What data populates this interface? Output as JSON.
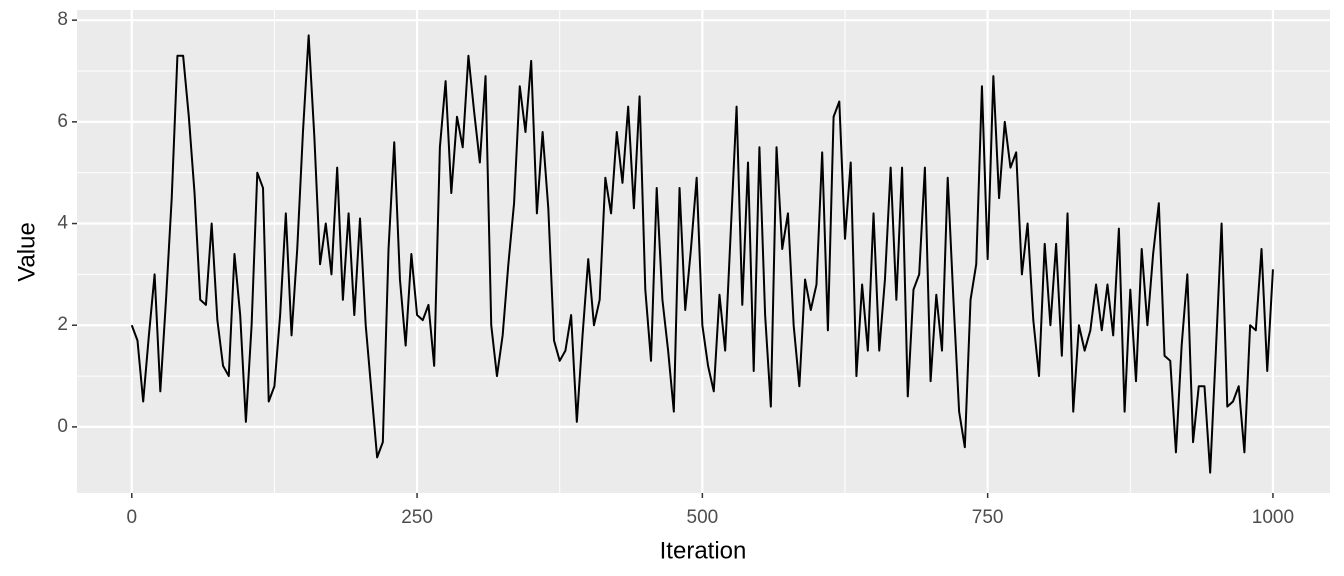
{
  "chart_data": {
    "type": "line",
    "x_label": "Iteration",
    "y_label": "Value",
    "xlim": [
      -48,
      1050
    ],
    "ylim": [
      -1.3,
      8.2
    ],
    "xticks": [
      0,
      250,
      500,
      750,
      1000
    ],
    "yticks": [
      0,
      2,
      4,
      6,
      8
    ],
    "grid": true,
    "series": [
      {
        "color": "#000000",
        "x": [
          0,
          5,
          10,
          15,
          20,
          25,
          30,
          35,
          40,
          45,
          50,
          55,
          60,
          65,
          70,
          75,
          80,
          85,
          90,
          95,
          100,
          105,
          110,
          115,
          120,
          125,
          130,
          135,
          140,
          145,
          150,
          155,
          160,
          165,
          170,
          175,
          180,
          185,
          190,
          195,
          200,
          205,
          210,
          215,
          220,
          225,
          230,
          235,
          240,
          245,
          250,
          255,
          260,
          265,
          270,
          275,
          280,
          285,
          290,
          295,
          300,
          305,
          310,
          315,
          320,
          325,
          330,
          335,
          340,
          345,
          350,
          355,
          360,
          365,
          370,
          375,
          380,
          385,
          390,
          395,
          400,
          405,
          410,
          415,
          420,
          425,
          430,
          435,
          440,
          445,
          450,
          455,
          460,
          465,
          470,
          475,
          480,
          485,
          490,
          495,
          500,
          505,
          510,
          515,
          520,
          525,
          530,
          535,
          540,
          545,
          550,
          555,
          560,
          565,
          570,
          575,
          580,
          585,
          590,
          595,
          600,
          605,
          610,
          615,
          620,
          625,
          630,
          635,
          640,
          645,
          650,
          655,
          660,
          665,
          670,
          675,
          680,
          685,
          690,
          695,
          700,
          705,
          710,
          715,
          720,
          725,
          730,
          735,
          740,
          745,
          750,
          755,
          760,
          765,
          770,
          775,
          780,
          785,
          790,
          795,
          800,
          805,
          810,
          815,
          820,
          825,
          830,
          835,
          840,
          845,
          850,
          855,
          860,
          865,
          870,
          875,
          880,
          885,
          890,
          895,
          900,
          905,
          910,
          915,
          920,
          925,
          930,
          935,
          940,
          945,
          950,
          955,
          960,
          965,
          970,
          975,
          980,
          985,
          990,
          995,
          1000
        ],
        "values": [
          2.0,
          1.7,
          0.5,
          1.8,
          3.0,
          0.7,
          2.5,
          4.5,
          7.3,
          7.3,
          6.1,
          4.6,
          2.5,
          2.4,
          4.0,
          2.1,
          1.2,
          1.0,
          3.4,
          2.2,
          0.1,
          2.0,
          5.0,
          4.7,
          0.5,
          0.8,
          2.2,
          4.2,
          1.8,
          3.5,
          5.8,
          7.7,
          5.7,
          3.2,
          4.0,
          3.0,
          5.1,
          2.5,
          4.2,
          2.2,
          4.1,
          2.0,
          0.7,
          -0.6,
          -0.3,
          3.5,
          5.6,
          2.9,
          1.6,
          3.4,
          2.2,
          2.1,
          2.4,
          1.2,
          5.5,
          6.8,
          4.6,
          6.1,
          5.5,
          7.3,
          6.2,
          5.2,
          6.9,
          2.0,
          1.0,
          1.8,
          3.2,
          4.4,
          6.7,
          5.8,
          7.2,
          4.2,
          5.8,
          4.3,
          1.7,
          1.3,
          1.5,
          2.2,
          0.1,
          1.8,
          3.3,
          2.0,
          2.5,
          4.9,
          4.2,
          5.8,
          4.8,
          6.3,
          4.3,
          6.5,
          2.7,
          1.3,
          4.7,
          2.5,
          1.5,
          0.3,
          4.7,
          2.3,
          3.5,
          4.9,
          2.0,
          1.2,
          0.7,
          2.6,
          1.5,
          3.9,
          6.3,
          2.4,
          5.2,
          1.1,
          5.5,
          2.2,
          0.4,
          5.5,
          3.5,
          4.2,
          2.0,
          0.8,
          2.9,
          2.3,
          2.8,
          5.4,
          1.9,
          6.1,
          6.4,
          3.7,
          5.2,
          1.0,
          2.8,
          1.5,
          4.2,
          1.5,
          2.9,
          5.1,
          2.5,
          5.1,
          0.6,
          2.7,
          3.0,
          5.1,
          0.9,
          2.6,
          1.5,
          4.9,
          2.5,
          0.3,
          -0.4,
          2.5,
          3.2,
          6.7,
          3.3,
          6.9,
          4.5,
          6.0,
          5.1,
          5.4,
          3.0,
          4.0,
          2.1,
          1.0,
          3.6,
          2.0,
          3.6,
          1.4,
          4.2,
          0.3,
          2.0,
          1.5,
          1.9,
          2.8,
          1.9,
          2.8,
          1.8,
          3.9,
          0.3,
          2.7,
          0.9,
          3.5,
          2.0,
          3.4,
          4.4,
          1.4,
          1.3,
          -0.5,
          1.6,
          3.0,
          -0.3,
          0.8,
          0.8,
          -0.9,
          1.5,
          4.0,
          0.4,
          0.5,
          0.8,
          -0.5,
          2.0,
          1.9,
          3.5,
          1.1,
          3.1
        ]
      }
    ]
  }
}
